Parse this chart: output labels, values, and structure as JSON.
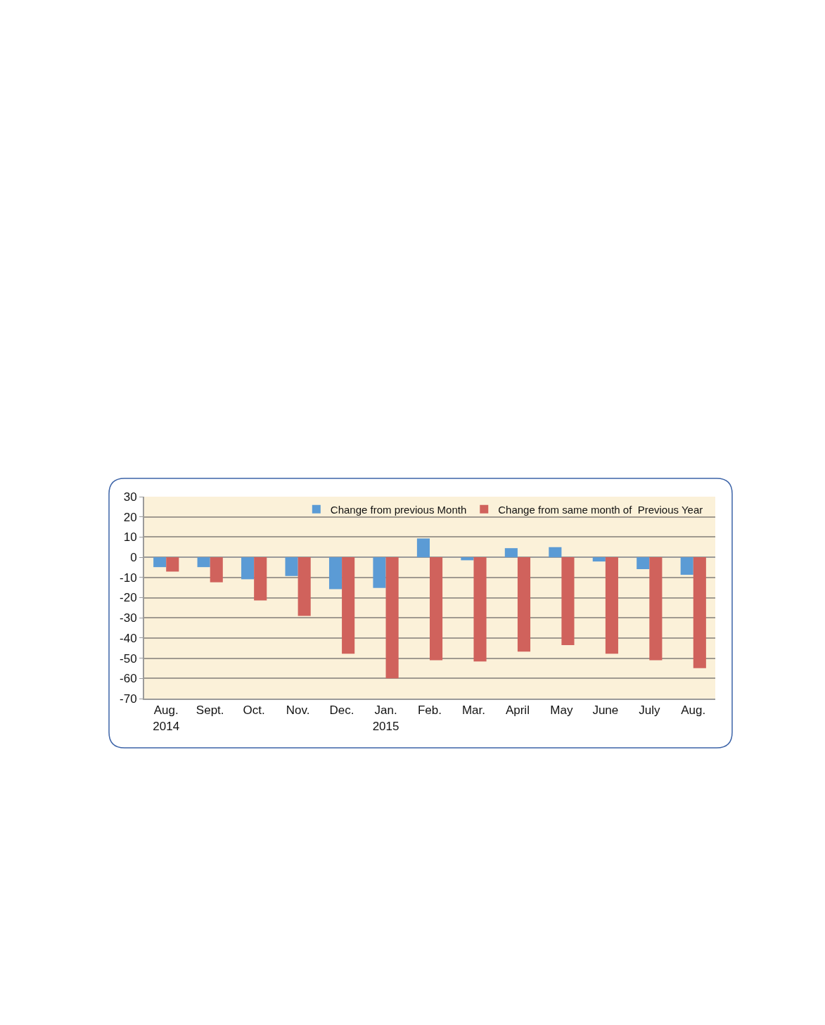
{
  "chart_data": {
    "type": "bar",
    "categories": [
      "Aug.\n2014",
      "Sept.",
      "Oct.",
      "Nov.",
      "Dec.",
      "Jan.\n2015",
      "Feb.",
      "Mar.",
      "April",
      "May",
      "June",
      "July",
      "Aug."
    ],
    "series": [
      {
        "name": "Change from previous Month",
        "color": "#5b9bd5",
        "values": [
          -4.9,
          -4.9,
          -10.9,
          -9.3,
          -15.8,
          -15.2,
          9.3,
          -1.5,
          4.5,
          5.0,
          -2.1,
          -5.9,
          -8.7
        ]
      },
      {
        "name": "Change from same month of  Previous Year",
        "color": "#d0625c",
        "values": [
          -7.1,
          -12.4,
          -21.4,
          -29.1,
          -47.8,
          -60.0,
          -51.0,
          -51.6,
          -46.7,
          -43.5,
          -47.8,
          -51.0,
          -54.9
        ]
      }
    ],
    "ylim": [
      -70,
      30
    ],
    "yticks": [
      -70,
      -60,
      -50,
      -40,
      -30,
      -20,
      -10,
      0,
      10,
      20,
      30
    ],
    "grid": "y",
    "legend": "top right"
  }
}
